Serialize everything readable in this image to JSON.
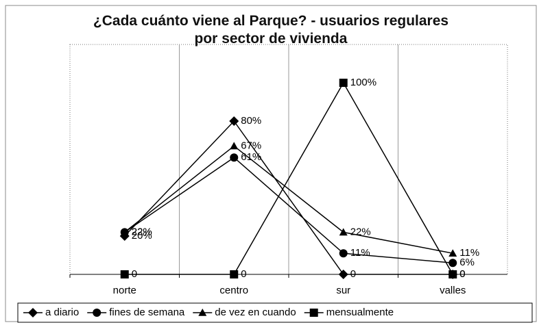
{
  "chart_data": {
    "type": "line",
    "title": "¿Cada cuánto viene al Parque? - usuarios regulares por sector de vivienda",
    "categories": [
      "norte",
      "centro",
      "sur",
      "valles"
    ],
    "ylim": [
      0,
      120
    ],
    "x_grid": true,
    "series": [
      {
        "name": "a diario",
        "color": "#000000",
        "marker": "diamond",
        "values": [
          20,
          80,
          0,
          0
        ],
        "value_labels": [
          "20%",
          "80%",
          "0",
          "0"
        ]
      },
      {
        "name": "fines de semana",
        "color": "#000000",
        "marker": "circle",
        "values": [
          22,
          61,
          11,
          6
        ],
        "value_labels": [
          "22%",
          "61%",
          "11%",
          "6%"
        ]
      },
      {
        "name": "de vez en cuando",
        "color": "#000000",
        "marker": "triangle",
        "values": [
          22,
          67,
          22,
          11
        ],
        "value_labels": [
          "22%",
          "67%",
          "22%",
          "11%"
        ]
      },
      {
        "name": "mensualmente",
        "color": "#000000",
        "marker": "square",
        "values": [
          0,
          0,
          100,
          0
        ],
        "value_labels": [
          "0",
          "0",
          "100%",
          "0"
        ]
      }
    ]
  }
}
